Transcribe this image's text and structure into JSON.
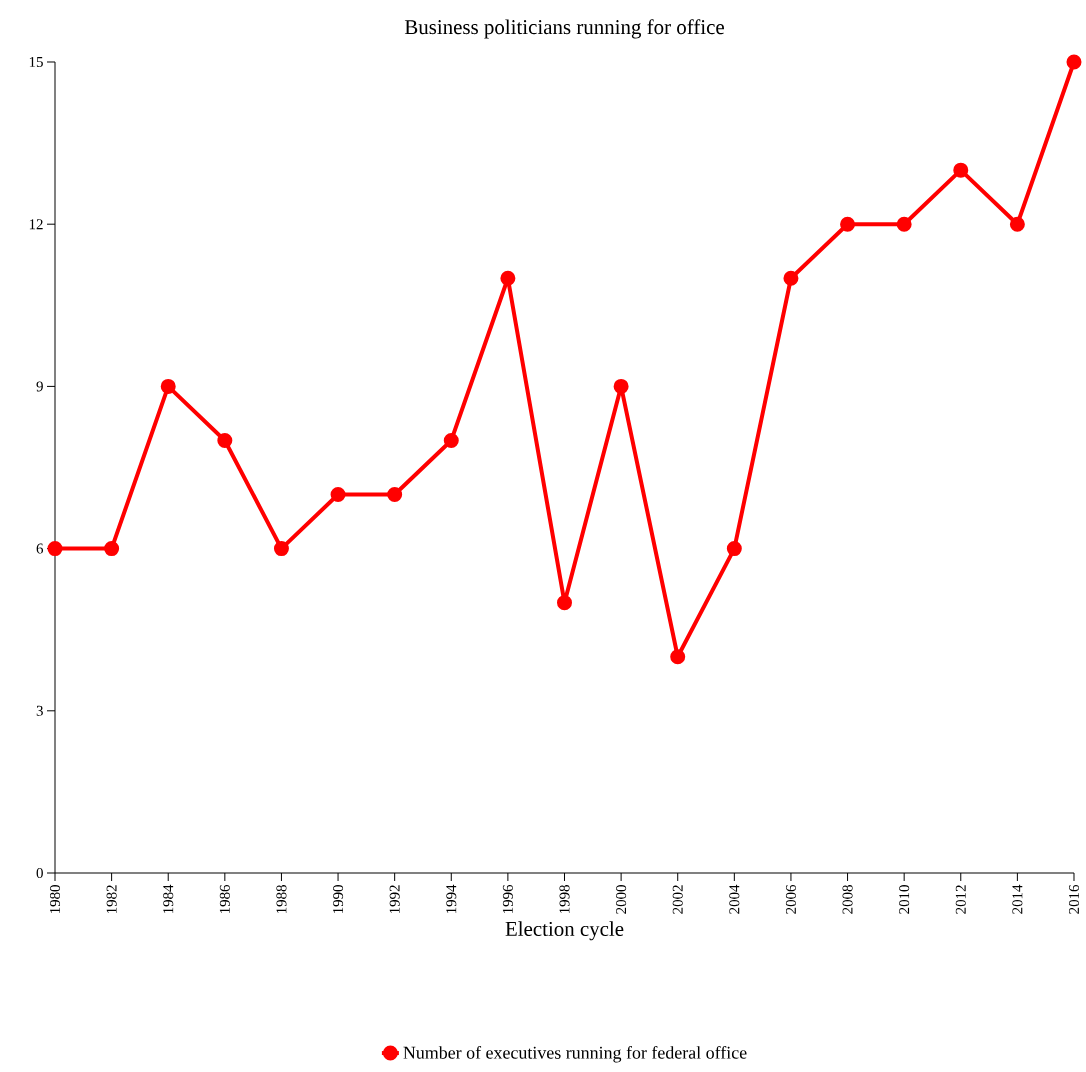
{
  "chart_data": {
    "type": "line",
    "title": "Business politicians running for office",
    "xlabel": "Election cycle",
    "categories": [
      "1980",
      "1982",
      "1984",
      "1986",
      "1988",
      "1990",
      "1992",
      "1994",
      "1996",
      "1998",
      "2000",
      "2002",
      "2004",
      "2006",
      "2008",
      "2010",
      "2012",
      "2014",
      "2016"
    ],
    "series": [
      {
        "name": "Number of executives running for federal office",
        "color": "#ff0000",
        "values": [
          6,
          6,
          9,
          8,
          6,
          7,
          7,
          8,
          11,
          5,
          9,
          4,
          6,
          11,
          12,
          12,
          13,
          12,
          15
        ]
      }
    ],
    "ylim": [
      0,
      15
    ],
    "yticks": [
      0,
      3,
      6,
      9,
      12,
      15
    ],
    "grid": false,
    "legend": "bottom",
    "marker": "circle",
    "line_style": "solid"
  }
}
